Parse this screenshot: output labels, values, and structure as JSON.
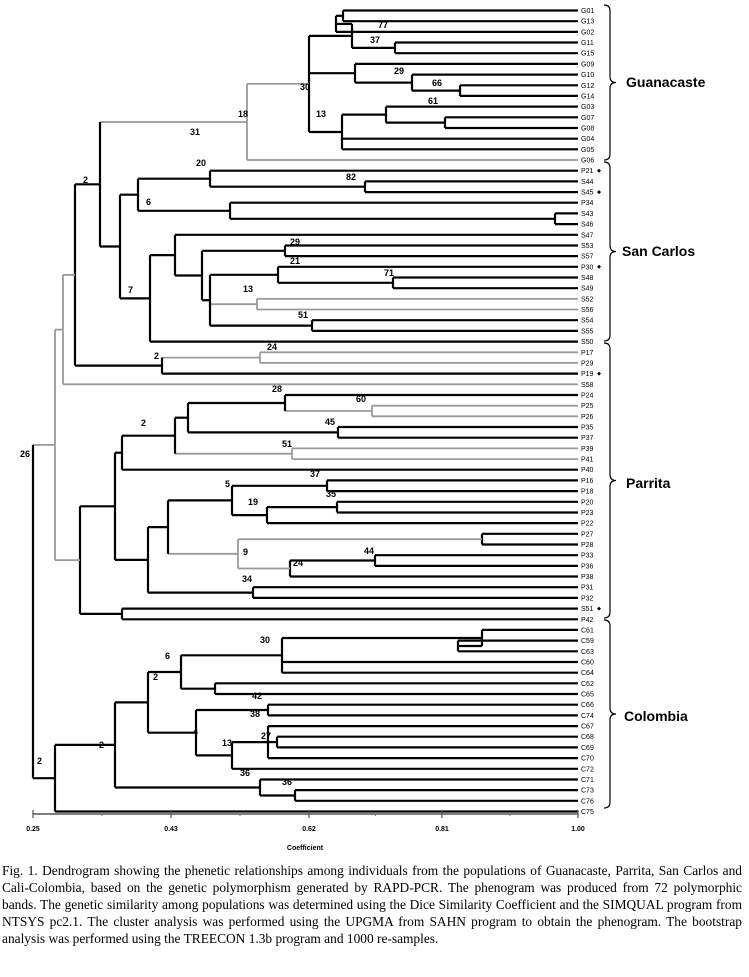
{
  "leaves": [
    "G01",
    "G13",
    "G02",
    "G11",
    "G15",
    "G09",
    "G10",
    "G12",
    "G14",
    "G03",
    "G07",
    "G08",
    "G04",
    "G05",
    "G06",
    "P21",
    "S44",
    "S45",
    "P34",
    "S43",
    "S46",
    "S47",
    "S53",
    "S57",
    "P30",
    "S48",
    "S49",
    "S52",
    "S56",
    "S54",
    "S55",
    "S50",
    "P17",
    "P29",
    "P19",
    "S58",
    "P24",
    "P25",
    "P26",
    "P35",
    "P37",
    "P39",
    "P41",
    "P40",
    "P16",
    "P18",
    "P20",
    "P23",
    "P22",
    "P27",
    "P28",
    "P33",
    "P36",
    "P38",
    "P31",
    "P32",
    "S51",
    "P42",
    "C61",
    "C59",
    "C63",
    "C60",
    "C64",
    "C62",
    "C65",
    "C66",
    "C74",
    "C67",
    "C68",
    "C69",
    "C70",
    "C72",
    "C71",
    "C73",
    "C76",
    "C75"
  ],
  "marked_leaves": [
    "P21",
    "S45",
    "P30",
    "P19",
    "S51"
  ],
  "groups": [
    "Guanacaste",
    "San Carlos",
    "Parrita",
    "Colombia"
  ],
  "axis": {
    "title": "Coefficient",
    "min": 0.25,
    "max": 1.0,
    "ticks": [
      "0.25",
      "0.43",
      "0.62",
      "0.81",
      "1.00"
    ]
  },
  "caption": "Fig. 1.  Dendrogram showing the phenetic relationships among individuals from the populations of Guanacaste, Parrita, San Carlos and Cali-Colombia, based on the genetic polymorphism generated by RAPD-PCR.  The phenogram was produced from 72 polymorphic bands. The genetic similarity among populations was determined using the Dice Similarity Coefficient and the SIMQUAL program from NTSYS pc2.1. The cluster analysis was performed using the UPGMA from SAHN program to obtain the phenogram. The bootstrap analysis was performed using the TREECON 1.3b program and 1000 re-samples."
}
